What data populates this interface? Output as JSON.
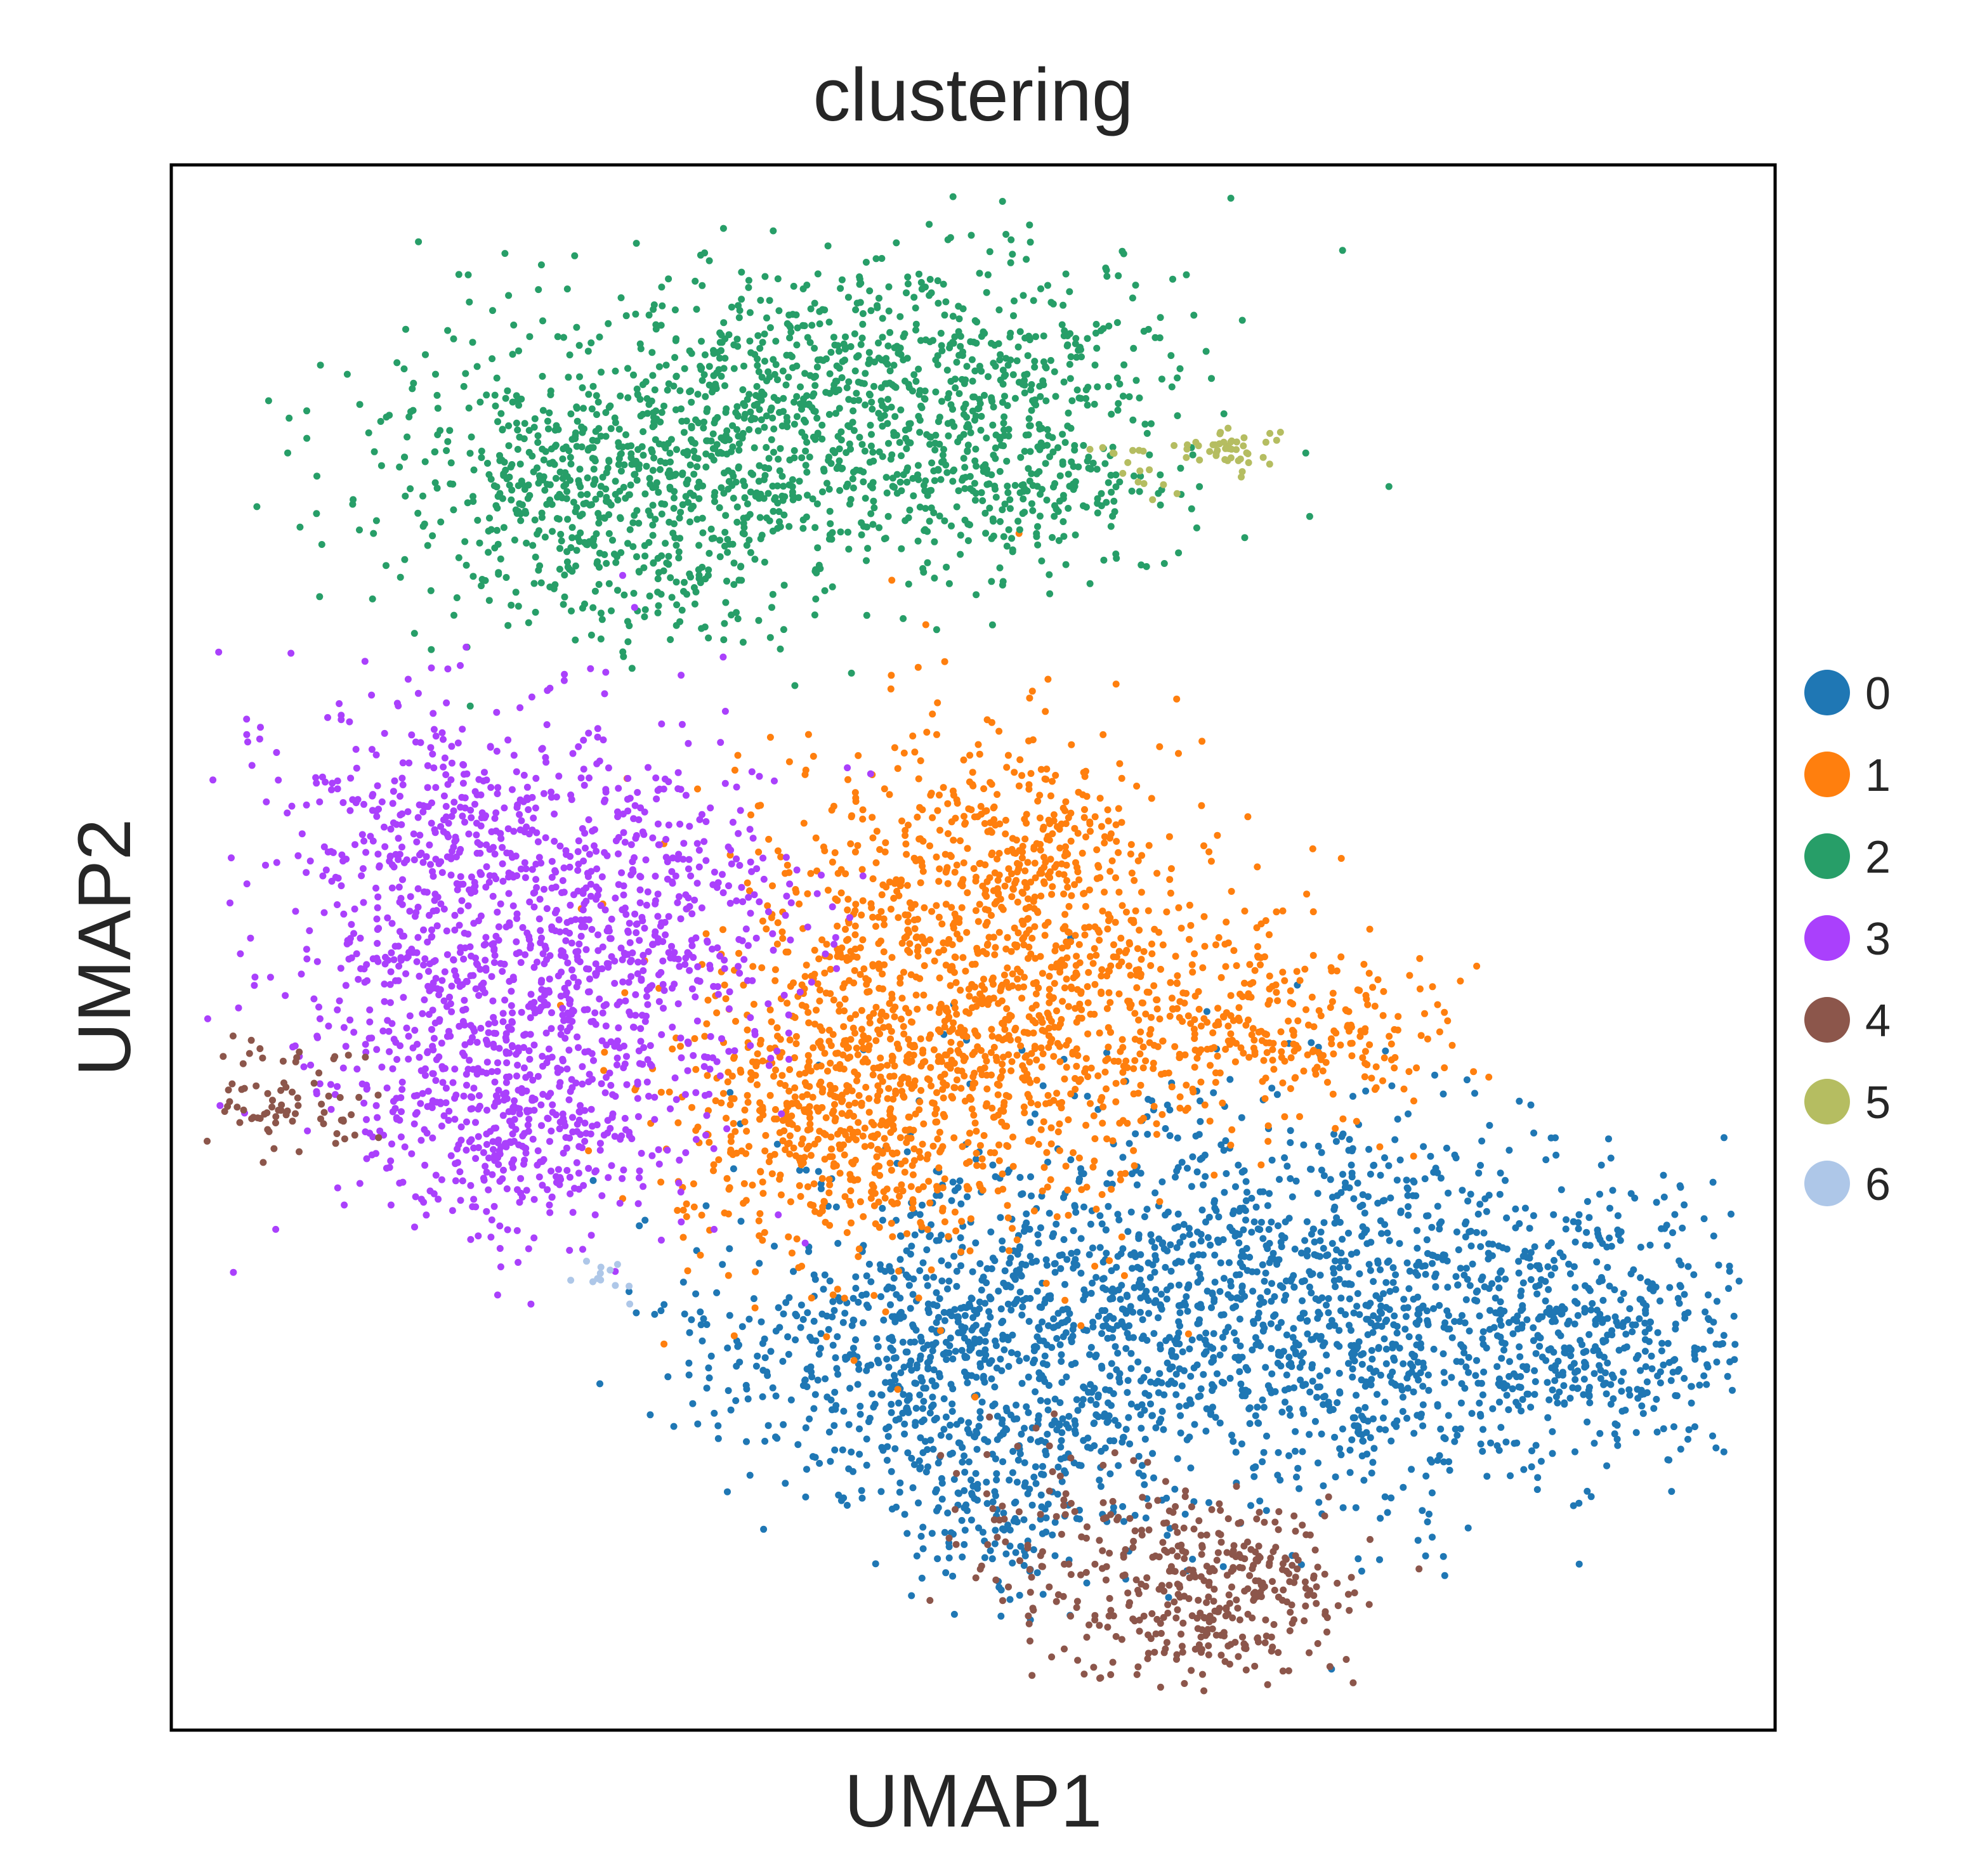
{
  "chart_data": {
    "type": "scatter",
    "title": "clustering",
    "xlabel": "UMAP1",
    "ylabel": "UMAP2",
    "xlim": [
      0,
      100
    ],
    "ylim": [
      0,
      100
    ],
    "grid": false,
    "ticks": false,
    "legend_placement": "right",
    "series": [
      {
        "name": "0",
        "color": "#1f77b4",
        "points": 2800,
        "clusters": [
          {
            "x": 62,
            "y": 27,
            "sx": 11,
            "sy": 6.5,
            "w": 3
          },
          {
            "x": 78,
            "y": 26,
            "sx": 9,
            "sy": 6,
            "w": 2
          },
          {
            "x": 46,
            "y": 24,
            "sx": 7,
            "sy": 4.5,
            "w": 1.5
          },
          {
            "x": 90,
            "y": 25,
            "sx": 4.5,
            "sy": 3.5,
            "w": 0.8
          },
          {
            "x": 52,
            "y": 15,
            "sx": 4,
            "sy": 3.5,
            "w": 0.5
          }
        ]
      },
      {
        "name": "1",
        "color": "#ff7f0e",
        "points": 2200,
        "clusters": [
          {
            "x": 48,
            "y": 46,
            "sx": 7.5,
            "sy": 8,
            "w": 3
          },
          {
            "x": 41,
            "y": 39,
            "sx": 5,
            "sy": 4,
            "w": 1
          },
          {
            "x": 62,
            "y": 46,
            "sx": 7,
            "sy": 4,
            "w": 1
          },
          {
            "x": 72,
            "y": 44,
            "sx": 4,
            "sy": 2.5,
            "w": 0.3
          },
          {
            "x": 54,
            "y": 57,
            "sx": 4,
            "sy": 3,
            "w": 0.5
          }
        ]
      },
      {
        "name": "2",
        "color": "#279e68",
        "points": 1900,
        "clusters": [
          {
            "x": 35,
            "y": 83,
            "sx": 10.5,
            "sy": 5,
            "w": 3
          },
          {
            "x": 49,
            "y": 87,
            "sx": 7,
            "sy": 4,
            "w": 1.2
          },
          {
            "x": 28,
            "y": 79,
            "sx": 6,
            "sy": 3.5,
            "w": 1
          },
          {
            "x": 54,
            "y": 79,
            "sx": 5,
            "sy": 2.5,
            "w": 0.6
          },
          {
            "x": 30,
            "y": 73,
            "sx": 6,
            "sy": 2,
            "w": 0.3
          }
        ]
      },
      {
        "name": "3",
        "color": "#aa40fc",
        "points": 1700,
        "clusters": [
          {
            "x": 21,
            "y": 47,
            "sx": 6.5,
            "sy": 7,
            "w": 3
          },
          {
            "x": 17,
            "y": 59,
            "sx": 6,
            "sy": 4,
            "w": 1
          },
          {
            "x": 31,
            "y": 52,
            "sx": 5,
            "sy": 5,
            "w": 1
          },
          {
            "x": 22,
            "y": 38,
            "sx": 5,
            "sy": 3,
            "w": 0.8
          }
        ]
      },
      {
        "name": "4",
        "color": "#8c564b",
        "points": 520,
        "clusters": [
          {
            "x": 66,
            "y": 9,
            "sx": 3.5,
            "sy": 3,
            "w": 3
          },
          {
            "x": 57,
            "y": 11,
            "sx": 4,
            "sy": 4,
            "w": 1.5
          },
          {
            "x": 7,
            "y": 40,
            "sx": 3,
            "sy": 2,
            "w": 0.8
          }
        ]
      },
      {
        "name": "5",
        "color": "#b5bd61",
        "points": 60,
        "clusters": [
          {
            "x": 66,
            "y": 82,
            "sx": 1.5,
            "sy": 0.7,
            "w": 2
          },
          {
            "x": 61,
            "y": 81,
            "sx": 2.5,
            "sy": 1,
            "w": 1
          }
        ]
      },
      {
        "name": "6",
        "color": "#aec7e8",
        "points": 12,
        "clusters": [
          {
            "x": 26.5,
            "y": 29.5,
            "sx": 0.9,
            "sy": 0.8,
            "w": 1
          }
        ]
      }
    ]
  }
}
